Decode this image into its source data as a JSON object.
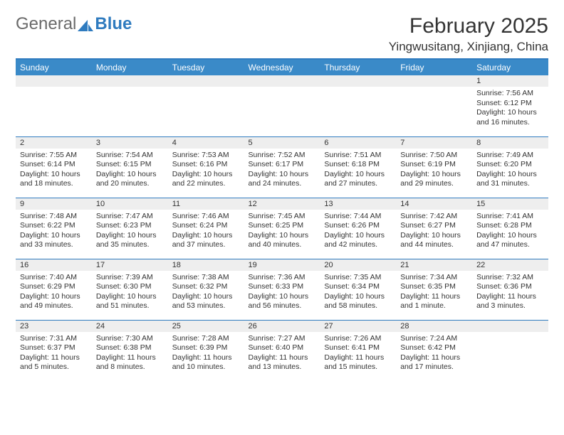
{
  "logo": {
    "text_general": "General",
    "text_blue": "Blue"
  },
  "title": "February 2025",
  "location": "Yingwusitang, Xinjiang, China",
  "colors": {
    "header_bg": "#3a8ac8",
    "rule": "#2f7bbf",
    "daynum_bg": "#eeeeee",
    "text": "#333333"
  },
  "weekdays": [
    "Sunday",
    "Monday",
    "Tuesday",
    "Wednesday",
    "Thursday",
    "Friday",
    "Saturday"
  ],
  "weeks": [
    [
      null,
      null,
      null,
      null,
      null,
      null,
      {
        "n": "1",
        "sr": "Sunrise: 7:56 AM",
        "ss": "Sunset: 6:12 PM",
        "dl": "Daylight: 10 hours and 16 minutes."
      }
    ],
    [
      {
        "n": "2",
        "sr": "Sunrise: 7:55 AM",
        "ss": "Sunset: 6:14 PM",
        "dl": "Daylight: 10 hours and 18 minutes."
      },
      {
        "n": "3",
        "sr": "Sunrise: 7:54 AM",
        "ss": "Sunset: 6:15 PM",
        "dl": "Daylight: 10 hours and 20 minutes."
      },
      {
        "n": "4",
        "sr": "Sunrise: 7:53 AM",
        "ss": "Sunset: 6:16 PM",
        "dl": "Daylight: 10 hours and 22 minutes."
      },
      {
        "n": "5",
        "sr": "Sunrise: 7:52 AM",
        "ss": "Sunset: 6:17 PM",
        "dl": "Daylight: 10 hours and 24 minutes."
      },
      {
        "n": "6",
        "sr": "Sunrise: 7:51 AM",
        "ss": "Sunset: 6:18 PM",
        "dl": "Daylight: 10 hours and 27 minutes."
      },
      {
        "n": "7",
        "sr": "Sunrise: 7:50 AM",
        "ss": "Sunset: 6:19 PM",
        "dl": "Daylight: 10 hours and 29 minutes."
      },
      {
        "n": "8",
        "sr": "Sunrise: 7:49 AM",
        "ss": "Sunset: 6:20 PM",
        "dl": "Daylight: 10 hours and 31 minutes."
      }
    ],
    [
      {
        "n": "9",
        "sr": "Sunrise: 7:48 AM",
        "ss": "Sunset: 6:22 PM",
        "dl": "Daylight: 10 hours and 33 minutes."
      },
      {
        "n": "10",
        "sr": "Sunrise: 7:47 AM",
        "ss": "Sunset: 6:23 PM",
        "dl": "Daylight: 10 hours and 35 minutes."
      },
      {
        "n": "11",
        "sr": "Sunrise: 7:46 AM",
        "ss": "Sunset: 6:24 PM",
        "dl": "Daylight: 10 hours and 37 minutes."
      },
      {
        "n": "12",
        "sr": "Sunrise: 7:45 AM",
        "ss": "Sunset: 6:25 PM",
        "dl": "Daylight: 10 hours and 40 minutes."
      },
      {
        "n": "13",
        "sr": "Sunrise: 7:44 AM",
        "ss": "Sunset: 6:26 PM",
        "dl": "Daylight: 10 hours and 42 minutes."
      },
      {
        "n": "14",
        "sr": "Sunrise: 7:42 AM",
        "ss": "Sunset: 6:27 PM",
        "dl": "Daylight: 10 hours and 44 minutes."
      },
      {
        "n": "15",
        "sr": "Sunrise: 7:41 AM",
        "ss": "Sunset: 6:28 PM",
        "dl": "Daylight: 10 hours and 47 minutes."
      }
    ],
    [
      {
        "n": "16",
        "sr": "Sunrise: 7:40 AM",
        "ss": "Sunset: 6:29 PM",
        "dl": "Daylight: 10 hours and 49 minutes."
      },
      {
        "n": "17",
        "sr": "Sunrise: 7:39 AM",
        "ss": "Sunset: 6:30 PM",
        "dl": "Daylight: 10 hours and 51 minutes."
      },
      {
        "n": "18",
        "sr": "Sunrise: 7:38 AM",
        "ss": "Sunset: 6:32 PM",
        "dl": "Daylight: 10 hours and 53 minutes."
      },
      {
        "n": "19",
        "sr": "Sunrise: 7:36 AM",
        "ss": "Sunset: 6:33 PM",
        "dl": "Daylight: 10 hours and 56 minutes."
      },
      {
        "n": "20",
        "sr": "Sunrise: 7:35 AM",
        "ss": "Sunset: 6:34 PM",
        "dl": "Daylight: 10 hours and 58 minutes."
      },
      {
        "n": "21",
        "sr": "Sunrise: 7:34 AM",
        "ss": "Sunset: 6:35 PM",
        "dl": "Daylight: 11 hours and 1 minute."
      },
      {
        "n": "22",
        "sr": "Sunrise: 7:32 AM",
        "ss": "Sunset: 6:36 PM",
        "dl": "Daylight: 11 hours and 3 minutes."
      }
    ],
    [
      {
        "n": "23",
        "sr": "Sunrise: 7:31 AM",
        "ss": "Sunset: 6:37 PM",
        "dl": "Daylight: 11 hours and 5 minutes."
      },
      {
        "n": "24",
        "sr": "Sunrise: 7:30 AM",
        "ss": "Sunset: 6:38 PM",
        "dl": "Daylight: 11 hours and 8 minutes."
      },
      {
        "n": "25",
        "sr": "Sunrise: 7:28 AM",
        "ss": "Sunset: 6:39 PM",
        "dl": "Daylight: 11 hours and 10 minutes."
      },
      {
        "n": "26",
        "sr": "Sunrise: 7:27 AM",
        "ss": "Sunset: 6:40 PM",
        "dl": "Daylight: 11 hours and 13 minutes."
      },
      {
        "n": "27",
        "sr": "Sunrise: 7:26 AM",
        "ss": "Sunset: 6:41 PM",
        "dl": "Daylight: 11 hours and 15 minutes."
      },
      {
        "n": "28",
        "sr": "Sunrise: 7:24 AM",
        "ss": "Sunset: 6:42 PM",
        "dl": "Daylight: 11 hours and 17 minutes."
      },
      null
    ]
  ]
}
